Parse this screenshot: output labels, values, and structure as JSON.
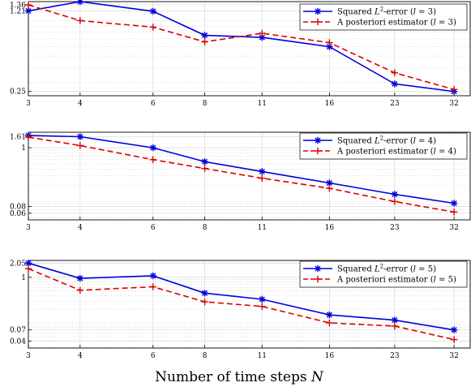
{
  "chart_data": [
    {
      "type": "line",
      "xscale": "log",
      "yscale": "log",
      "x": [
        3,
        4,
        6,
        8,
        11,
        16,
        23,
        32
      ],
      "xlim": [
        3,
        35
      ],
      "ylim": [
        0.23,
        1.45
      ],
      "yticks": [
        0.25,
        1.21,
        1.36
      ],
      "grid": true,
      "legend_position": "top-right",
      "series": [
        {
          "name": "Squared L²-error (l = 3)",
          "name_parts": [
            "Squared ",
            "L",
            "2",
            "-error (",
            "l",
            " = 3)"
          ],
          "color": "#0000dd",
          "marker": "asterisk",
          "dash": "solid",
          "values": [
            1.21,
            1.45,
            1.2,
            0.75,
            0.72,
            0.6,
            0.29,
            0.25
          ]
        },
        {
          "name": "A posteriori estimator (l = 3)",
          "name_parts": [
            "A posteriori estimator (",
            "l",
            " = 3)"
          ],
          "color": "#dd0000",
          "marker": "plus",
          "dash": "dashed",
          "values": [
            1.36,
            1.0,
            0.88,
            0.66,
            0.78,
            0.65,
            0.36,
            0.26
          ]
        }
      ]
    },
    {
      "type": "line",
      "xscale": "log",
      "yscale": "log",
      "x": [
        3,
        4,
        6,
        8,
        11,
        16,
        23,
        32
      ],
      "xlim": [
        3,
        35
      ],
      "ylim": [
        0.045,
        1.95
      ],
      "yticks": [
        0.06,
        0.08,
        1,
        1.61
      ],
      "grid": true,
      "legend_position": "top-right",
      "series": [
        {
          "name": "Squared L²-error (l = 4)",
          "name_parts": [
            "Squared ",
            "L",
            "2",
            "-error (",
            "l",
            " = 4)"
          ],
          "color": "#0000dd",
          "marker": "asterisk",
          "dash": "solid",
          "values": [
            1.7,
            1.61,
            1.0,
            0.55,
            0.36,
            0.22,
            0.135,
            0.092
          ]
        },
        {
          "name": "A posteriori estimator (l = 4)",
          "name_parts": [
            "A posteriori estimator (",
            "l",
            " = 4)"
          ],
          "color": "#dd0000",
          "marker": "plus",
          "dash": "dashed",
          "values": [
            1.58,
            1.1,
            0.6,
            0.41,
            0.27,
            0.175,
            0.099,
            0.063
          ]
        }
      ]
    },
    {
      "type": "line",
      "xscale": "log",
      "yscale": "log",
      "x": [
        3,
        4,
        6,
        8,
        11,
        16,
        23,
        32
      ],
      "xlim": [
        3,
        35
      ],
      "ylim": [
        0.028,
        2.35
      ],
      "yticks": [
        0.04,
        0.07,
        1,
        2.05
      ],
      "grid": true,
      "legend_position": "top-right",
      "series": [
        {
          "name": "Squared L²-error (l = 5)",
          "name_parts": [
            "Squared ",
            "L",
            "2",
            "-error (",
            "l",
            " = 5)"
          ],
          "color": "#0000dd",
          "marker": "asterisk",
          "dash": "solid",
          "values": [
            2.05,
            0.95,
            1.08,
            0.45,
            0.33,
            0.15,
            0.115,
            0.07
          ]
        },
        {
          "name": "A posteriori estimator (l = 5)",
          "name_parts": [
            "A posteriori estimator (",
            "l",
            " = 5)"
          ],
          "color": "#dd0000",
          "marker": "plus",
          "dash": "dashed",
          "values": [
            1.55,
            0.52,
            0.62,
            0.29,
            0.23,
            0.1,
            0.085,
            0.043
          ]
        }
      ]
    }
  ],
  "xlabel_parts": [
    "Number of time steps ",
    "N"
  ]
}
